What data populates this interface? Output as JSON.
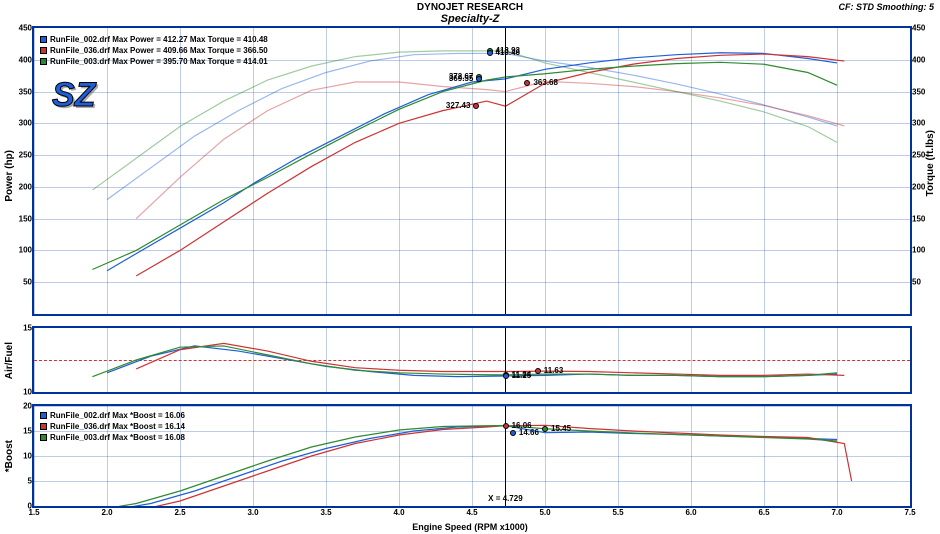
{
  "header": {
    "title1": "DYNOJET RESEARCH",
    "title2": "Specialty-Z",
    "smoothing": "CF: STD  Smoothing: 5"
  },
  "logo_text": "SZ",
  "xaxis": {
    "label": "Engine Speed (RPM x1000)",
    "min": 1.5,
    "max": 7.5,
    "ticks": [
      1.5,
      2.0,
      2.5,
      3.0,
      3.5,
      4.0,
      4.5,
      5.0,
      5.5,
      6.0,
      6.5,
      7.0,
      7.5
    ],
    "cursor_x": 4.729,
    "cursor_label": "X = 4.729"
  },
  "colors": {
    "run002": "#1e5fd9",
    "run036": "#cc3333",
    "run003": "#2e8b2e",
    "frame": "#003399",
    "grid": "#003399"
  },
  "panel_power": {
    "ylabel_left": "Power (hp)",
    "ylabel_right": "Torque (ft.lbs)",
    "ymin": 0,
    "ymax": 450,
    "ystep": 50,
    "legend": [
      {
        "color": "#1e5fd9",
        "label": "RunFile_002.drf Max Power = 412.27    Max Torque = 410.48"
      },
      {
        "color": "#cc3333",
        "label": "RunFile_036.drf Max Power = 409.66    Max Torque = 366.50"
      },
      {
        "color": "#2e8b2e",
        "label": "RunFile_003.drf Max Power = 395.70    Max Torque = 414.01"
      }
    ],
    "cursor_markers": [
      {
        "x": 4.62,
        "y": 413.93,
        "color": "#2e8b2e",
        "label": "413.93",
        "side": "right"
      },
      {
        "x": 4.62,
        "y": 410.46,
        "color": "#1e5fd9",
        "label": "410.46",
        "side": "right"
      },
      {
        "x": 4.55,
        "y": 372.67,
        "color": "#2e8b2e",
        "label": "372.67",
        "side": "left"
      },
      {
        "x": 4.55,
        "y": 369.55,
        "color": "#1e5fd9",
        "label": "369.55",
        "side": "left"
      },
      {
        "x": 4.88,
        "y": 363.68,
        "color": "#cc3333",
        "label": "363.68",
        "side": "right"
      },
      {
        "x": 4.53,
        "y": 327.43,
        "color": "#cc3333",
        "label": "327.43",
        "side": "left"
      }
    ],
    "series_power": {
      "run002": [
        [
          2.0,
          68
        ],
        [
          2.2,
          95
        ],
        [
          2.5,
          135
        ],
        [
          2.8,
          175
        ],
        [
          3.0,
          205
        ],
        [
          3.3,
          245
        ],
        [
          3.6,
          280
        ],
        [
          3.9,
          315
        ],
        [
          4.2,
          345
        ],
        [
          4.5,
          365
        ],
        [
          4.73,
          370
        ],
        [
          5.0,
          385
        ],
        [
          5.3,
          395
        ],
        [
          5.6,
          403
        ],
        [
          5.9,
          408
        ],
        [
          6.2,
          411
        ],
        [
          6.5,
          410
        ],
        [
          6.8,
          402
        ],
        [
          7.0,
          395
        ]
      ],
      "run036": [
        [
          2.2,
          60
        ],
        [
          2.5,
          100
        ],
        [
          2.8,
          145
        ],
        [
          3.1,
          190
        ],
        [
          3.4,
          232
        ],
        [
          3.7,
          270
        ],
        [
          4.0,
          300
        ],
        [
          4.3,
          320
        ],
        [
          4.6,
          335
        ],
        [
          4.73,
          327
        ],
        [
          5.0,
          363
        ],
        [
          5.3,
          380
        ],
        [
          5.6,
          393
        ],
        [
          5.9,
          402
        ],
        [
          6.2,
          407
        ],
        [
          6.5,
          409
        ],
        [
          6.8,
          405
        ],
        [
          7.05,
          398
        ]
      ],
      "run003": [
        [
          1.9,
          70
        ],
        [
          2.2,
          100
        ],
        [
          2.5,
          140
        ],
        [
          2.8,
          180
        ],
        [
          3.1,
          215
        ],
        [
          3.4,
          252
        ],
        [
          3.7,
          288
        ],
        [
          4.0,
          322
        ],
        [
          4.3,
          350
        ],
        [
          4.6,
          368
        ],
        [
          4.73,
          373
        ],
        [
          5.0,
          378
        ],
        [
          5.3,
          385
        ],
        [
          5.6,
          390
        ],
        [
          5.9,
          394
        ],
        [
          6.2,
          396
        ],
        [
          6.5,
          393
        ],
        [
          6.8,
          380
        ],
        [
          7.0,
          360
        ]
      ]
    },
    "series_torque": {
      "run002": [
        [
          2.0,
          180
        ],
        [
          2.3,
          230
        ],
        [
          2.6,
          280
        ],
        [
          2.9,
          320
        ],
        [
          3.2,
          355
        ],
        [
          3.5,
          380
        ],
        [
          3.8,
          398
        ],
        [
          4.1,
          408
        ],
        [
          4.4,
          410
        ],
        [
          4.73,
          410
        ],
        [
          5.0,
          398
        ],
        [
          5.3,
          388
        ],
        [
          5.6,
          376
        ],
        [
          5.9,
          362
        ],
        [
          6.2,
          346
        ],
        [
          6.5,
          329
        ],
        [
          6.8,
          310
        ],
        [
          7.0,
          296
        ]
      ],
      "run036": [
        [
          2.2,
          150
        ],
        [
          2.5,
          215
        ],
        [
          2.8,
          275
        ],
        [
          3.1,
          320
        ],
        [
          3.4,
          352
        ],
        [
          3.7,
          365
        ],
        [
          4.0,
          365
        ],
        [
          4.3,
          358
        ],
        [
          4.6,
          353
        ],
        [
          4.73,
          350
        ],
        [
          5.0,
          366
        ],
        [
          5.3,
          363
        ],
        [
          5.6,
          358
        ],
        [
          5.9,
          350
        ],
        [
          6.2,
          340
        ],
        [
          6.5,
          328
        ],
        [
          6.8,
          312
        ],
        [
          7.05,
          296
        ]
      ],
      "run003": [
        [
          1.9,
          195
        ],
        [
          2.2,
          245
        ],
        [
          2.5,
          295
        ],
        [
          2.8,
          335
        ],
        [
          3.1,
          368
        ],
        [
          3.4,
          390
        ],
        [
          3.7,
          405
        ],
        [
          4.0,
          412
        ],
        [
          4.3,
          414
        ],
        [
          4.6,
          414
        ],
        [
          4.73,
          414
        ],
        [
          5.0,
          395
        ],
        [
          5.3,
          380
        ],
        [
          5.6,
          365
        ],
        [
          5.9,
          350
        ],
        [
          6.2,
          335
        ],
        [
          6.5,
          318
        ],
        [
          6.8,
          295
        ],
        [
          7.0,
          270
        ]
      ]
    }
  },
  "panel_af": {
    "ylabel_left": "Air/Fuel",
    "ymin": 10,
    "ymax": 15,
    "yticks": [
      10,
      15
    ],
    "dash_at": 12.5,
    "cursor_markers": [
      {
        "x": 4.73,
        "y": 11.34,
        "color": "#2e8b2e",
        "label": "11.34",
        "side": "right"
      },
      {
        "x": 4.73,
        "y": 11.25,
        "color": "#1e5fd9",
        "label": "11.25",
        "side": "right"
      },
      {
        "x": 4.95,
        "y": 11.63,
        "color": "#cc3333",
        "label": "11.63",
        "side": "right"
      }
    ],
    "series": {
      "run002": [
        [
          2.0,
          11.5
        ],
        [
          2.3,
          12.8
        ],
        [
          2.6,
          13.6
        ],
        [
          2.9,
          13.2
        ],
        [
          3.2,
          12.6
        ],
        [
          3.5,
          12.0
        ],
        [
          3.8,
          11.6
        ],
        [
          4.1,
          11.3
        ],
        [
          4.4,
          11.2
        ],
        [
          4.73,
          11.25
        ],
        [
          5.0,
          11.3
        ],
        [
          5.3,
          11.4
        ],
        [
          5.6,
          11.3
        ],
        [
          5.9,
          11.3
        ],
        [
          6.2,
          11.2
        ],
        [
          6.5,
          11.2
        ],
        [
          6.8,
          11.3
        ],
        [
          7.0,
          11.4
        ]
      ],
      "run036": [
        [
          2.2,
          11.8
        ],
        [
          2.5,
          13.3
        ],
        [
          2.8,
          13.8
        ],
        [
          3.1,
          13.2
        ],
        [
          3.4,
          12.4
        ],
        [
          3.7,
          11.9
        ],
        [
          4.0,
          11.7
        ],
        [
          4.3,
          11.6
        ],
        [
          4.6,
          11.6
        ],
        [
          4.73,
          11.6
        ],
        [
          5.0,
          11.63
        ],
        [
          5.3,
          11.6
        ],
        [
          5.6,
          11.5
        ],
        [
          5.9,
          11.4
        ],
        [
          6.2,
          11.3
        ],
        [
          6.5,
          11.3
        ],
        [
          6.8,
          11.4
        ],
        [
          7.05,
          11.3
        ]
      ],
      "run003": [
        [
          1.9,
          11.2
        ],
        [
          2.2,
          12.5
        ],
        [
          2.5,
          13.5
        ],
        [
          2.8,
          13.6
        ],
        [
          3.1,
          12.9
        ],
        [
          3.4,
          12.2
        ],
        [
          3.7,
          11.7
        ],
        [
          4.0,
          11.5
        ],
        [
          4.3,
          11.4
        ],
        [
          4.6,
          11.35
        ],
        [
          4.73,
          11.34
        ],
        [
          5.0,
          11.4
        ],
        [
          5.3,
          11.4
        ],
        [
          5.6,
          11.3
        ],
        [
          5.9,
          11.3
        ],
        [
          6.2,
          11.2
        ],
        [
          6.5,
          11.2
        ],
        [
          6.8,
          11.3
        ],
        [
          7.0,
          11.5
        ]
      ]
    }
  },
  "panel_boost": {
    "ylabel_left": "*Boost",
    "ymin": 0,
    "ymax": 20,
    "ystep": 5,
    "legend": [
      {
        "color": "#1e5fd9",
        "label": "RunFile_002.drf Max *Boost = 16.06"
      },
      {
        "color": "#cc3333",
        "label": "RunFile_036.drf Max *Boost = 16.14"
      },
      {
        "color": "#2e8b2e",
        "label": "RunFile_003.drf Max *Boost = 16.08"
      }
    ],
    "cursor_markers": [
      {
        "x": 4.73,
        "y": 16.06,
        "color": "#cc3333",
        "label": "16.06",
        "side": "right"
      },
      {
        "x": 5.0,
        "y": 15.45,
        "color": "#2e8b2e",
        "label": "15.45",
        "side": "right"
      },
      {
        "x": 4.78,
        "y": 14.66,
        "color": "#1e5fd9",
        "label": "14.66",
        "side": "right"
      }
    ],
    "series": {
      "run002": [
        [
          2.0,
          -1
        ],
        [
          2.3,
          0.5
        ],
        [
          2.6,
          3
        ],
        [
          2.9,
          6
        ],
        [
          3.2,
          9
        ],
        [
          3.5,
          11.5
        ],
        [
          3.8,
          13.5
        ],
        [
          4.1,
          15
        ],
        [
          4.4,
          15.8
        ],
        [
          4.73,
          16.06
        ],
        [
          5.0,
          14.66
        ],
        [
          5.3,
          14.8
        ],
        [
          5.6,
          14.5
        ],
        [
          5.9,
          14.3
        ],
        [
          6.2,
          14.0
        ],
        [
          6.5,
          13.8
        ],
        [
          6.8,
          13.5
        ],
        [
          7.0,
          13.3
        ]
      ],
      "run036": [
        [
          2.2,
          -1
        ],
        [
          2.5,
          1
        ],
        [
          2.8,
          4
        ],
        [
          3.1,
          7
        ],
        [
          3.4,
          10
        ],
        [
          3.7,
          12.5
        ],
        [
          4.0,
          14.2
        ],
        [
          4.3,
          15.3
        ],
        [
          4.6,
          15.8
        ],
        [
          4.73,
          16.06
        ],
        [
          5.0,
          16.14
        ],
        [
          5.3,
          15.5
        ],
        [
          5.6,
          15.0
        ],
        [
          5.9,
          14.6
        ],
        [
          6.2,
          14.2
        ],
        [
          6.5,
          13.9
        ],
        [
          6.8,
          13.7
        ],
        [
          7.05,
          12.5
        ],
        [
          7.1,
          5
        ]
      ],
      "run003": [
        [
          1.9,
          -1
        ],
        [
          2.2,
          0.5
        ],
        [
          2.5,
          3
        ],
        [
          2.8,
          6
        ],
        [
          3.1,
          9
        ],
        [
          3.4,
          11.8
        ],
        [
          3.7,
          13.8
        ],
        [
          4.0,
          15.2
        ],
        [
          4.3,
          15.9
        ],
        [
          4.6,
          16.05
        ],
        [
          4.73,
          16.08
        ],
        [
          5.0,
          15.45
        ],
        [
          5.3,
          15.0
        ],
        [
          5.6,
          14.6
        ],
        [
          5.9,
          14.3
        ],
        [
          6.2,
          14.0
        ],
        [
          6.5,
          13.7
        ],
        [
          6.8,
          13.4
        ],
        [
          7.0,
          13.0
        ]
      ]
    }
  }
}
